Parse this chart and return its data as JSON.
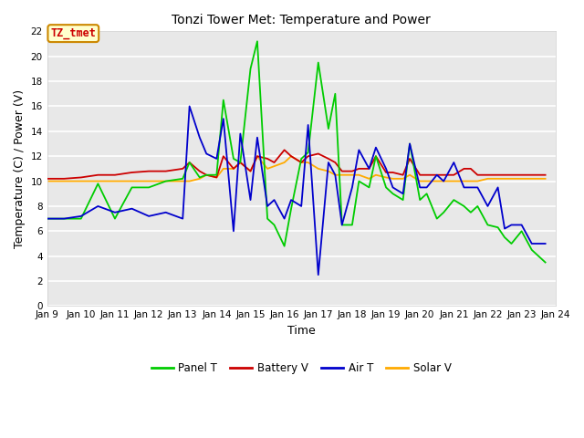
{
  "title": "Tonzi Tower Met: Temperature and Power",
  "xlabel": "Time",
  "ylabel": "Temperature (C) / Power (V)",
  "ylim": [
    0,
    22
  ],
  "yticks": [
    0,
    2,
    4,
    6,
    8,
    10,
    12,
    14,
    16,
    18,
    20,
    22
  ],
  "x_labels": [
    "Jan 9",
    "Jan 10",
    "Jan 11",
    "Jan 12",
    "Jan 13",
    "Jan 14",
    "Jan 15",
    "Jan 16",
    "Jan 17",
    "Jan 18",
    "Jan 19",
    "Jan 20",
    "Jan 21",
    "Jan 22",
    "Jan 23",
    "Jan 24"
  ],
  "fig_bg_color": "#ffffff",
  "plot_bg_color": "#e8e8e8",
  "grid_color": "#ffffff",
  "annotation_text": "TZ_tmet",
  "annotation_color": "#cc0000",
  "annotation_bg": "#ffffcc",
  "annotation_border": "#cc8800",
  "legend_entries": [
    "Panel T",
    "Battery V",
    "Air T",
    "Solar V"
  ],
  "line_colors": [
    "#00cc00",
    "#cc0000",
    "#0000cc",
    "#ffaa00"
  ],
  "x": [
    9,
    9.5,
    10,
    10.5,
    11,
    11.5,
    12,
    12.5,
    13,
    13.2,
    13.5,
    13.7,
    14,
    14.2,
    14.5,
    14.7,
    15,
    15.2,
    15.5,
    15.7,
    16,
    16.2,
    16.5,
    16.7,
    17,
    17.3,
    17.5,
    17.7,
    18,
    18.2,
    18.5,
    18.7,
    19,
    19.2,
    19.5,
    19.7,
    20,
    20.2,
    20.5,
    20.7,
    21,
    21.3,
    21.5,
    21.7,
    22,
    22.3,
    22.5,
    22.7,
    23,
    23.3,
    23.7
  ],
  "panel_t": [
    7.0,
    7.0,
    7.0,
    9.8,
    7.0,
    9.5,
    9.5,
    10.0,
    10.2,
    11.5,
    10.3,
    10.5,
    10.5,
    16.5,
    11.8,
    11.5,
    19.0,
    21.2,
    7.0,
    6.5,
    4.8,
    7.8,
    11.8,
    12.3,
    19.5,
    14.2,
    17.0,
    6.5,
    6.5,
    10.0,
    9.5,
    12.0,
    9.5,
    9.0,
    8.5,
    13.0,
    8.5,
    9.0,
    7.0,
    7.5,
    8.5,
    8.0,
    7.5,
    8.0,
    6.5,
    6.3,
    5.5,
    5.0,
    6.0,
    4.5,
    3.5
  ],
  "battery_v": [
    10.2,
    10.2,
    10.3,
    10.5,
    10.5,
    10.7,
    10.8,
    10.8,
    11.0,
    11.5,
    10.8,
    10.5,
    10.3,
    12.0,
    11.0,
    11.5,
    10.8,
    12.0,
    11.8,
    11.5,
    12.5,
    12.0,
    11.5,
    12.0,
    12.2,
    11.8,
    11.5,
    10.8,
    10.8,
    11.0,
    11.0,
    12.0,
    10.7,
    10.7,
    10.5,
    11.8,
    10.5,
    10.5,
    10.5,
    10.5,
    10.5,
    11.0,
    11.0,
    10.5,
    10.5,
    10.5,
    10.5,
    10.5,
    10.5,
    10.5,
    10.5
  ],
  "air_t": [
    7.0,
    7.0,
    7.2,
    8.0,
    7.5,
    7.8,
    7.2,
    7.5,
    7.0,
    16.0,
    13.5,
    12.2,
    11.8,
    15.0,
    6.0,
    13.8,
    8.5,
    13.5,
    8.0,
    8.5,
    7.0,
    8.5,
    8.0,
    14.5,
    2.5,
    11.5,
    10.5,
    6.5,
    9.5,
    12.5,
    11.0,
    12.7,
    11.0,
    9.5,
    9.0,
    13.0,
    9.5,
    9.5,
    10.5,
    10.0,
    11.5,
    9.5,
    9.5,
    9.5,
    8.0,
    9.5,
    6.2,
    6.5,
    6.5,
    5.0,
    5.0
  ],
  "solar_v": [
    10.0,
    10.0,
    10.0,
    10.0,
    10.0,
    10.0,
    10.0,
    10.0,
    10.0,
    10.0,
    10.2,
    10.5,
    10.3,
    11.0,
    11.0,
    11.5,
    10.8,
    12.0,
    11.0,
    11.2,
    11.5,
    12.0,
    11.5,
    11.5,
    11.0,
    10.8,
    10.5,
    10.5,
    10.5,
    10.5,
    10.2,
    10.5,
    10.3,
    10.2,
    10.2,
    10.5,
    10.0,
    10.0,
    10.0,
    10.0,
    10.0,
    10.0,
    10.0,
    10.0,
    10.2,
    10.2,
    10.2,
    10.2,
    10.2,
    10.2,
    10.2
  ]
}
